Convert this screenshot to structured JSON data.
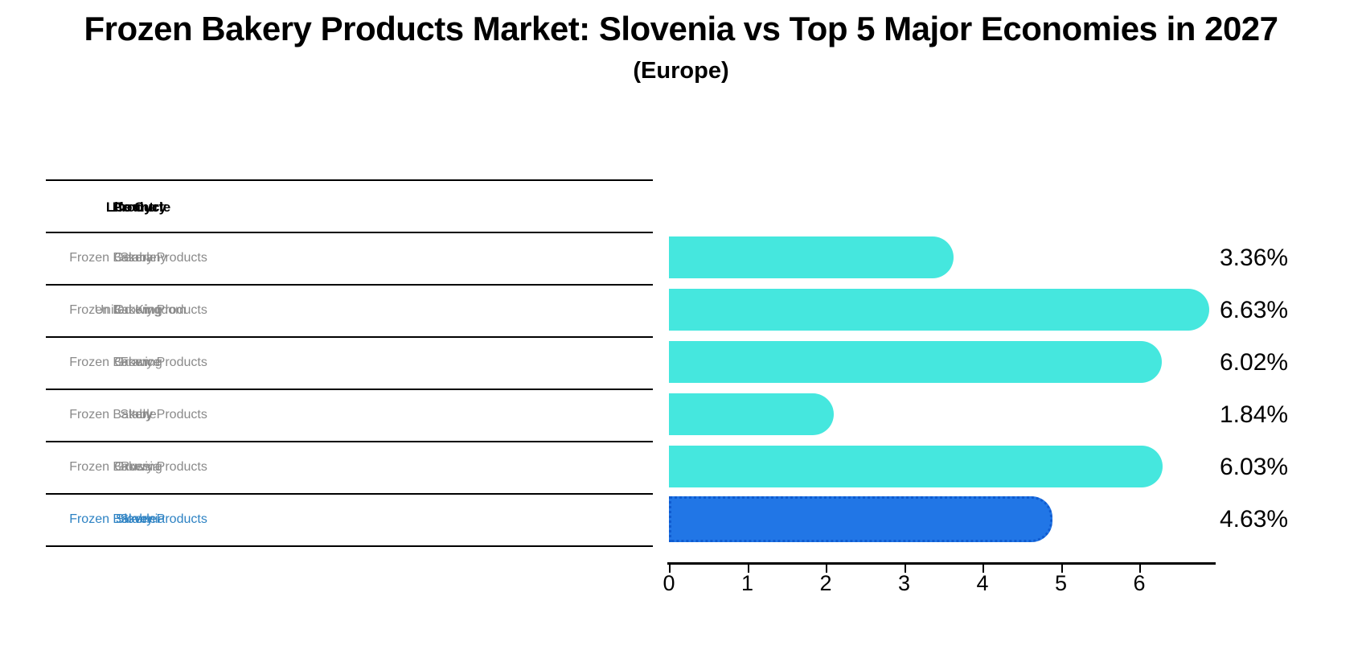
{
  "title": "Frozen Bakery Products Market: Slovenia vs Top 5 Major Economies in 2027",
  "subtitle": "(Europe)",
  "colors": {
    "bar": "#45e7de",
    "highlight_bar": "#2176e6",
    "highlight_text": "#2d82c3",
    "body_text": "#8a8a8a",
    "header_text": "#000000",
    "axis": "#000000"
  },
  "table": {
    "headers": [
      "Country",
      "Product",
      "Life Cycle"
    ],
    "rows": [
      {
        "country": "Germany",
        "product": "Frozen Bakery Products",
        "life_cycle": "Stable",
        "highlight": false
      },
      {
        "country": "United Kingdom",
        "product": "Frozen Bakery Products",
        "life_cycle": "Growing",
        "highlight": false
      },
      {
        "country": "France",
        "product": "Frozen Bakery Products",
        "life_cycle": "Growing",
        "highlight": false
      },
      {
        "country": "Italy",
        "product": "Frozen Bakery Products",
        "life_cycle": "Stable",
        "highlight": false
      },
      {
        "country": "Russia",
        "product": "Frozen Bakery Products",
        "life_cycle": "Growing",
        "highlight": false
      },
      {
        "country": "Slovenia",
        "product": "Frozen Bakery Products",
        "life_cycle": "Stable",
        "highlight": true
      }
    ]
  },
  "chart_data": {
    "type": "bar",
    "orientation": "horizontal",
    "title": "Frozen Bakery Products Market: Slovenia vs Top 5 Major Economies in 2027 (Europe)",
    "categories": [
      "Germany",
      "United Kingdom",
      "France",
      "Italy",
      "Russia",
      "Slovenia"
    ],
    "values": [
      3.36,
      6.63,
      6.02,
      1.84,
      6.03,
      4.63
    ],
    "value_labels": [
      "3.36%",
      "6.63%",
      "6.02%",
      "1.84%",
      "6.03%",
      "4.63%"
    ],
    "highlight_category": "Slovenia",
    "xlabel": "",
    "ylabel": "",
    "xlim": [
      0,
      7
    ],
    "xticks": [
      0,
      1,
      2,
      3,
      4,
      5,
      6
    ],
    "grid": false,
    "legend": false
  }
}
